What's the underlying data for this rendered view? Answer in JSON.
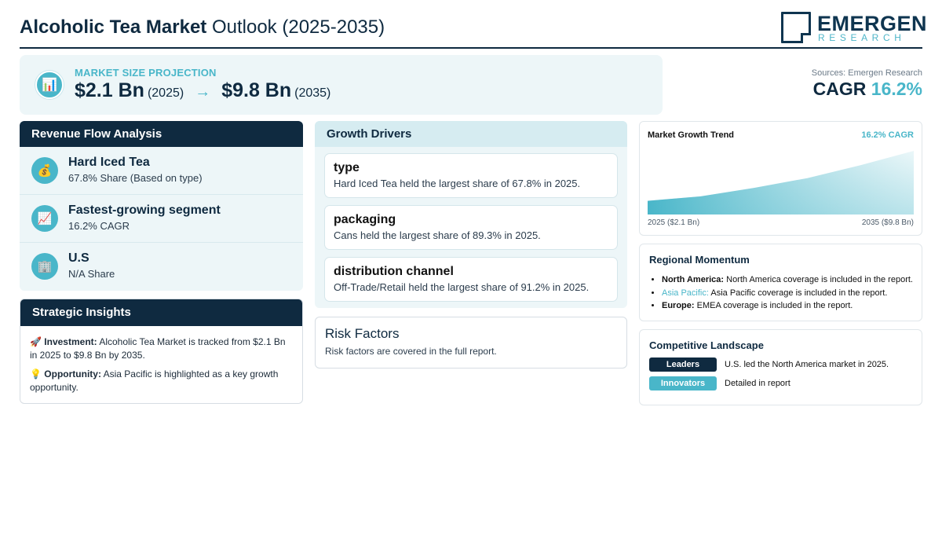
{
  "header": {
    "title_bold": "Alcoholic Tea Market",
    "title_rest": "Outlook (2025-2035)",
    "logo_main": "EMERGEN",
    "logo_sub": "RESEARCH"
  },
  "projection": {
    "icon": "bar-chart-icon",
    "label": "MARKET SIZE PROJECTION",
    "start_value": "$2.1 Bn",
    "start_year": "(2025)",
    "arrow": "→",
    "end_value": "$9.8 Bn",
    "end_year": "(2035)"
  },
  "cagr": {
    "source": "Sources: Emergen Research",
    "label": "CAGR",
    "value": "16.2%"
  },
  "revenue_flow": {
    "title": "Revenue Flow Analysis",
    "items": [
      {
        "icon": "money-bag-icon",
        "glyph": "💰",
        "title": "Hard Iced Tea",
        "subtitle": "67.8% Share (Based on type)"
      },
      {
        "icon": "trend-up-icon",
        "glyph": "📈",
        "title": "Fastest-growing segment",
        "subtitle": "16.2% CAGR"
      },
      {
        "icon": "building-icon",
        "glyph": "🏢",
        "title": "U.S",
        "subtitle": "N/A Share"
      }
    ]
  },
  "strategic": {
    "title": "Strategic Insights",
    "investment_label": "Investment:",
    "investment_text": "Alcoholic Tea Market is tracked from $2.1 Bn in 2025 to $9.8 Bn by 2035.",
    "opportunity_label": "Opportunity:",
    "opportunity_text": "Asia Pacific is highlighted as a key growth opportunity."
  },
  "drivers": {
    "title": "Growth Drivers",
    "cards": [
      {
        "title": "type",
        "text": "Hard Iced Tea held the largest share of 67.8% in 2025."
      },
      {
        "title": "packaging",
        "text": "Cans held the largest share of 89.3% in 2025."
      },
      {
        "title": "distribution channel",
        "text": "Off-Trade/Retail held the largest share of 91.2% in 2025."
      }
    ]
  },
  "risk": {
    "title": "Risk Factors",
    "text": "Risk factors are covered in the full report."
  },
  "trend": {
    "title": "Market Growth Trend",
    "cagr_label": "16.2% CAGR",
    "start_label": "2025 ($2.1 Bn)",
    "end_label": "2035 ($9.8 Bn)",
    "accent": "#49b6c9"
  },
  "chart_data": {
    "type": "area",
    "x": [
      2025,
      2027,
      2029,
      2031,
      2033,
      2035
    ],
    "values": [
      2.1,
      2.8,
      4.1,
      5.6,
      7.6,
      9.8
    ],
    "title": "Market Growth Trend",
    "xlabel": "",
    "ylabel": "",
    "ylim": [
      0,
      9.8
    ]
  },
  "regional": {
    "title": "Regional Momentum",
    "items": [
      {
        "name": "North America:",
        "text": "North America coverage is included in the report."
      },
      {
        "name": "Asia Pacific:",
        "text": "Asia Pacific coverage is included in the report."
      },
      {
        "name": "Europe:",
        "text": "EMEA coverage is included in the report."
      }
    ]
  },
  "competitive": {
    "title": "Competitive Landscape",
    "rows": [
      {
        "badge": "Leaders",
        "text": "U.S. led the North America market in 2025."
      },
      {
        "badge": "Innovators",
        "text": "Detailed in report"
      }
    ]
  }
}
